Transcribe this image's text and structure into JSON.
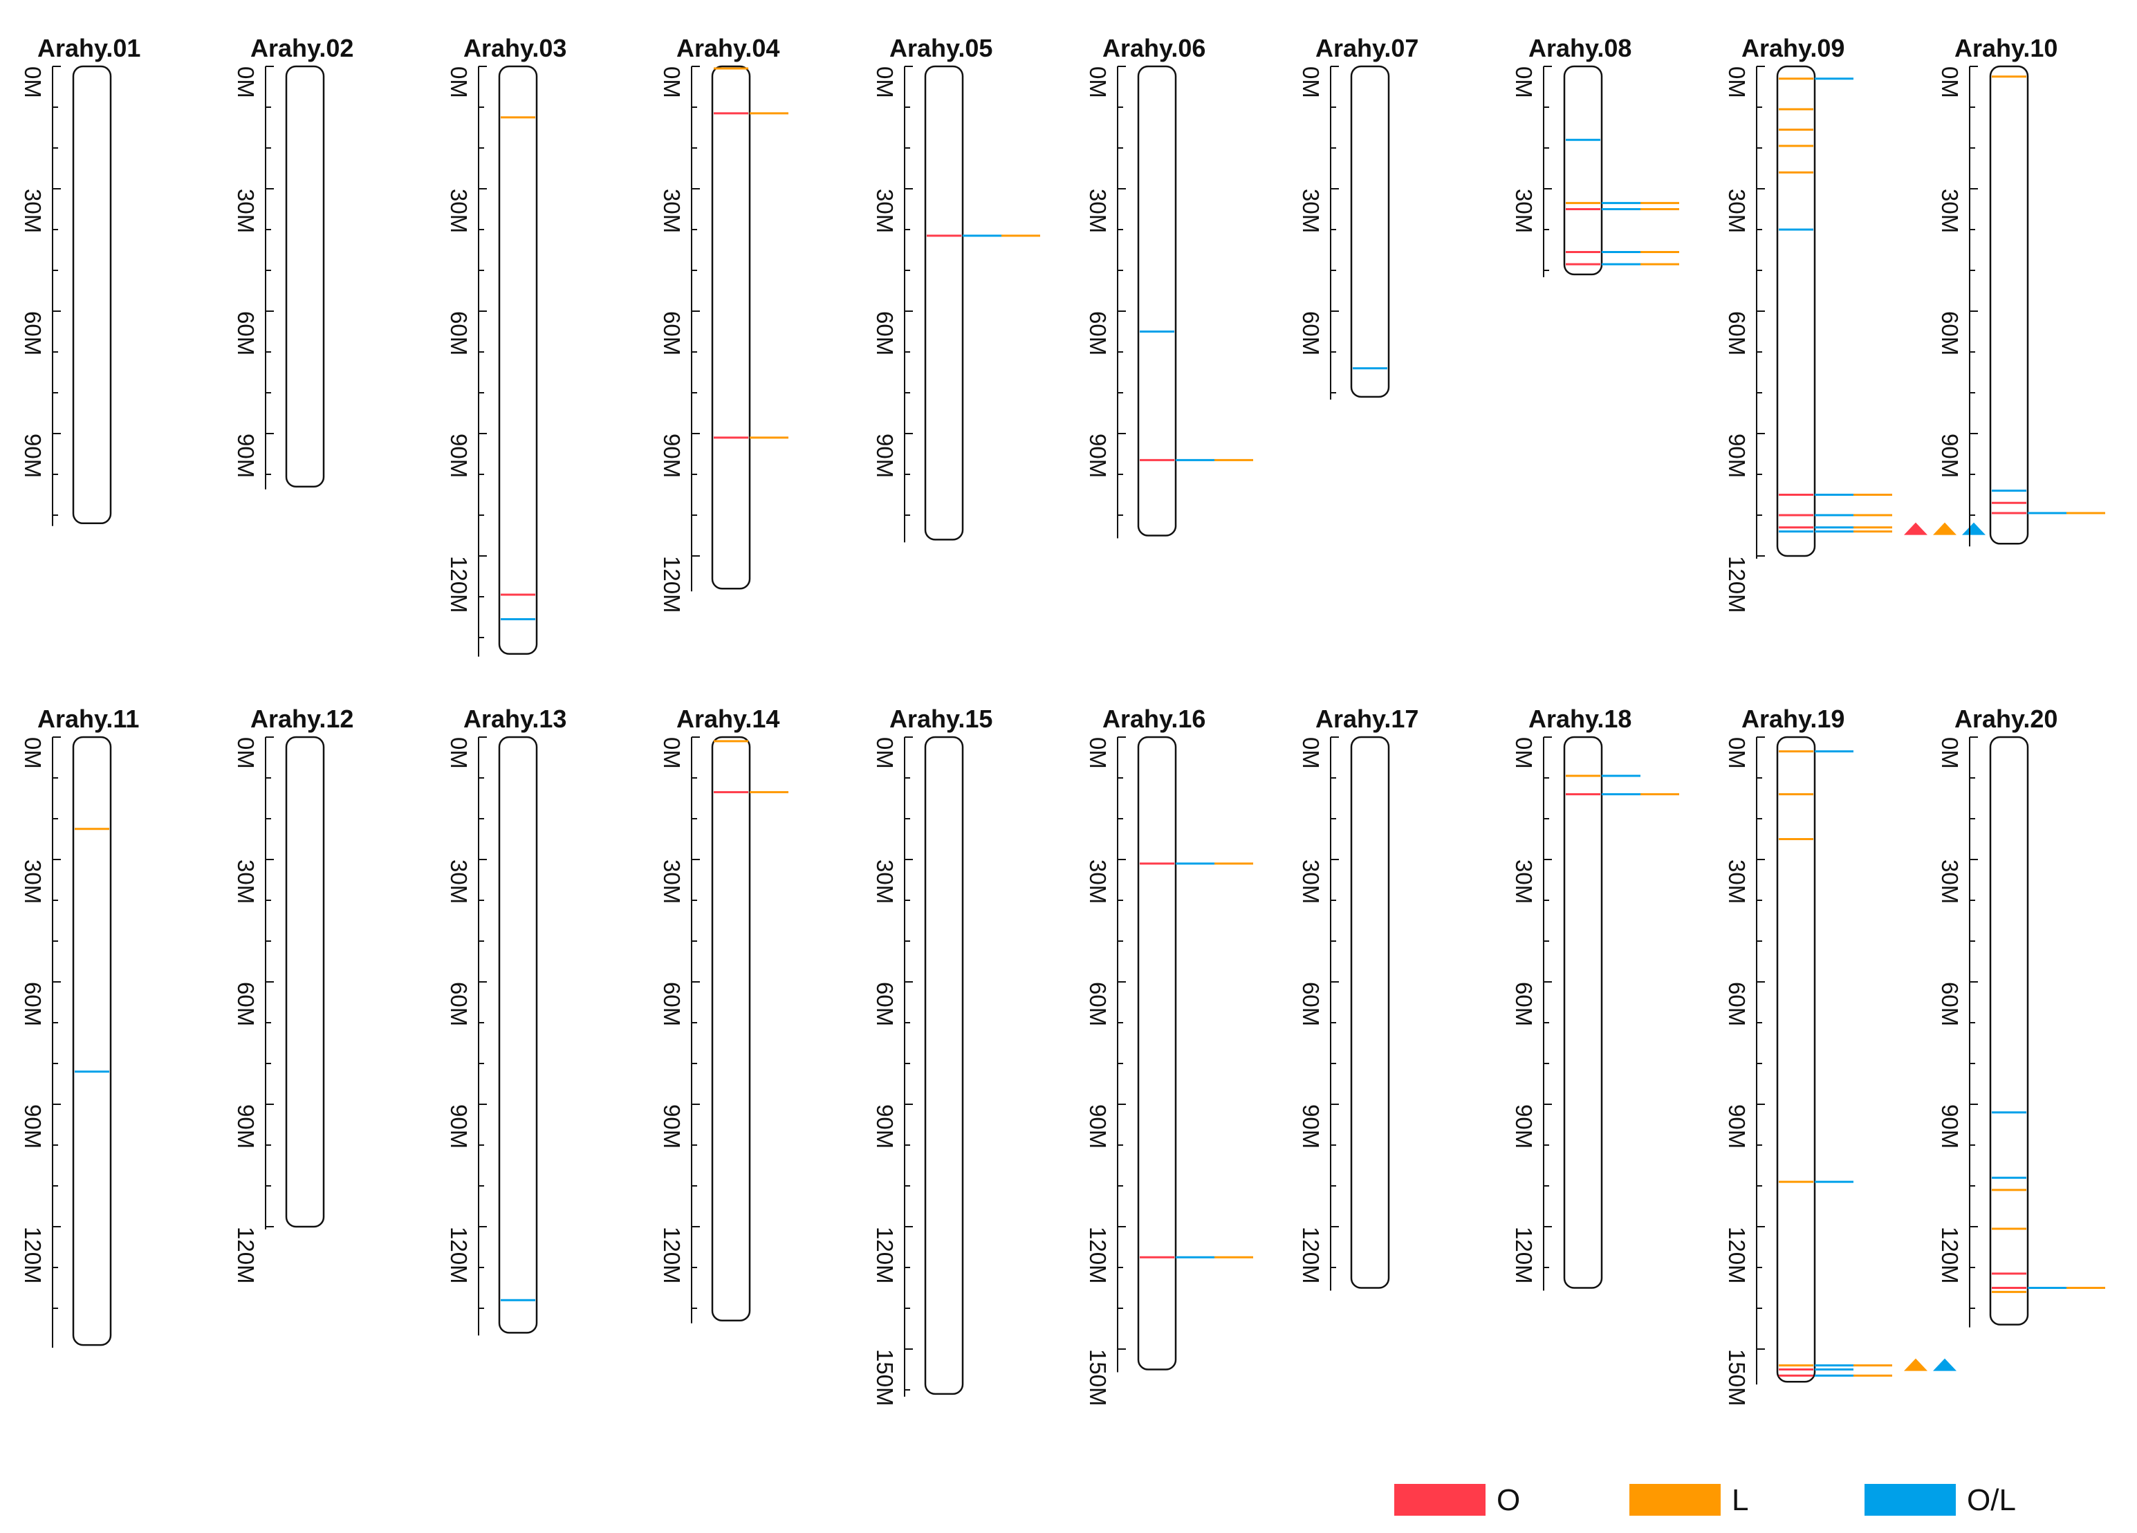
{
  "colors": {
    "O": "#ff3b4a",
    "L": "#ff9900",
    "OL": "#00a0e9"
  },
  "legend": [
    {
      "key": "O",
      "label": "O"
    },
    {
      "key": "L",
      "label": "L"
    },
    {
      "key": "OL",
      "label": "O/L"
    }
  ],
  "chart_data": {
    "type": "chromosome-map",
    "unit": "Mb",
    "tick_labels": [
      "0M",
      "30M",
      "60M",
      "90M",
      "120M",
      "150M"
    ],
    "chromosomes": [
      {
        "name": "Arahy.01",
        "length": 112,
        "markers": []
      },
      {
        "name": "Arahy.02",
        "length": 103,
        "markers": []
      },
      {
        "name": "Arahy.03",
        "length": 144,
        "markers": [
          {
            "pos": 12.5,
            "cat": "L"
          },
          {
            "pos": 129.5,
            "cat": "O"
          },
          {
            "pos": 135.5,
            "cat": "OL"
          }
        ]
      },
      {
        "name": "Arahy.04",
        "length": 128,
        "markers": [
          {
            "pos": 0.5,
            "cat": "L"
          },
          {
            "pos": 11.5,
            "cat": "O",
            "ext": [
              "L"
            ]
          },
          {
            "pos": 91,
            "cat": "O",
            "ext": [
              "L"
            ]
          }
        ]
      },
      {
        "name": "Arahy.05",
        "length": 116,
        "markers": [
          {
            "pos": 41.5,
            "cat": "O",
            "ext": [
              "OL",
              "L"
            ]
          }
        ]
      },
      {
        "name": "Arahy.06",
        "length": 115,
        "markers": [
          {
            "pos": 65,
            "cat": "OL"
          },
          {
            "pos": 96.5,
            "cat": "O",
            "ext": [
              "OL",
              "L"
            ]
          }
        ]
      },
      {
        "name": "Arahy.07",
        "length": 81,
        "markers": [
          {
            "pos": 74,
            "cat": "OL"
          }
        ]
      },
      {
        "name": "Arahy.08",
        "length": 51,
        "markers": [
          {
            "pos": 18,
            "cat": "OL"
          },
          {
            "pos": 33.5,
            "cat": "L",
            "ext": [
              "OL",
              "L"
            ]
          },
          {
            "pos": 35,
            "cat": "O",
            "ext": [
              "OL",
              "L"
            ]
          },
          {
            "pos": 45.5,
            "cat": "O",
            "ext": [
              "OL",
              "L"
            ]
          },
          {
            "pos": 48.5,
            "cat": "O",
            "ext": [
              "OL",
              "L"
            ]
          }
        ]
      },
      {
        "name": "Arahy.09",
        "length": 120,
        "markers": [
          {
            "pos": 3,
            "cat": "L",
            "ext": [
              "OL"
            ]
          },
          {
            "pos": 10.5,
            "cat": "L"
          },
          {
            "pos": 15.5,
            "cat": "L"
          },
          {
            "pos": 19.5,
            "cat": "L"
          },
          {
            "pos": 26,
            "cat": "L"
          },
          {
            "pos": 40,
            "cat": "OL"
          },
          {
            "pos": 105,
            "cat": "O",
            "ext": [
              "OL",
              "L"
            ]
          },
          {
            "pos": 110,
            "cat": "O",
            "ext": [
              "OL",
              "L"
            ]
          },
          {
            "pos": 113,
            "cat": "O",
            "ext": [
              "OL",
              "L"
            ]
          },
          {
            "pos": 114,
            "cat": "OL",
            "ext": [
              "OL",
              "L"
            ]
          }
        ],
        "arrows": [
          "O",
          "L",
          "OL"
        ]
      },
      {
        "name": "Arahy.10",
        "length": 117,
        "markers": [
          {
            "pos": 2.5,
            "cat": "L"
          },
          {
            "pos": 104,
            "cat": "OL"
          },
          {
            "pos": 107,
            "cat": "O"
          },
          {
            "pos": 109.5,
            "cat": "O",
            "ext": [
              "OL",
              "L"
            ]
          }
        ]
      },
      {
        "name": "Arahy.11",
        "length": 149,
        "markers": [
          {
            "pos": 22.5,
            "cat": "L"
          },
          {
            "pos": 82,
            "cat": "OL"
          }
        ]
      },
      {
        "name": "Arahy.12",
        "length": 120,
        "markers": []
      },
      {
        "name": "Arahy.13",
        "length": 146,
        "markers": [
          {
            "pos": 138,
            "cat": "OL"
          }
        ]
      },
      {
        "name": "Arahy.14",
        "length": 143,
        "markers": [
          {
            "pos": 1,
            "cat": "L"
          },
          {
            "pos": 13.5,
            "cat": "O",
            "ext": [
              "L"
            ]
          }
        ]
      },
      {
        "name": "Arahy.15",
        "length": 161,
        "markers": []
      },
      {
        "name": "Arahy.16",
        "length": 155,
        "markers": [
          {
            "pos": 31,
            "cat": "O",
            "ext": [
              "OL",
              "L"
            ]
          },
          {
            "pos": 127.5,
            "cat": "O",
            "ext": [
              "OL",
              "L"
            ]
          }
        ]
      },
      {
        "name": "Arahy.17",
        "length": 135,
        "markers": []
      },
      {
        "name": "Arahy.18",
        "length": 135,
        "markers": [
          {
            "pos": 9.5,
            "cat": "L",
            "ext": [
              "OL"
            ]
          },
          {
            "pos": 14,
            "cat": "O",
            "ext": [
              "OL",
              "L"
            ]
          }
        ]
      },
      {
        "name": "Arahy.19",
        "length": 158,
        "markers": [
          {
            "pos": 3.5,
            "cat": "L",
            "ext": [
              "OL"
            ]
          },
          {
            "pos": 14,
            "cat": "L"
          },
          {
            "pos": 25,
            "cat": "L"
          },
          {
            "pos": 109,
            "cat": "L",
            "ext": [
              "OL"
            ]
          },
          {
            "pos": 154,
            "cat": "L",
            "ext": [
              "OL",
              "L"
            ]
          },
          {
            "pos": 155,
            "cat": "O",
            "ext": [
              "OL"
            ]
          },
          {
            "pos": 156.5,
            "cat": "O",
            "ext": [
              "OL",
              "L"
            ]
          }
        ],
        "arrows": [
          "L",
          "OL"
        ]
      },
      {
        "name": "Arahy.20",
        "length": 144,
        "markers": [
          {
            "pos": 92,
            "cat": "OL"
          },
          {
            "pos": 108,
            "cat": "OL"
          },
          {
            "pos": 111,
            "cat": "L"
          },
          {
            "pos": 120.5,
            "cat": "L"
          },
          {
            "pos": 131.5,
            "cat": "O"
          },
          {
            "pos": 135,
            "cat": "O",
            "ext": [
              "OL",
              "L"
            ]
          },
          {
            "pos": 136,
            "cat": "L"
          }
        ]
      }
    ]
  }
}
